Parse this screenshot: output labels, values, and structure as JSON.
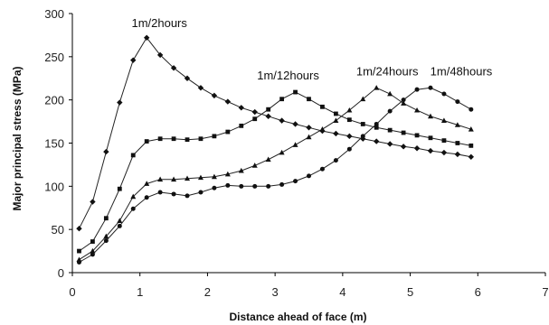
{
  "chart_data": {
    "type": "line",
    "xlabel": "Distance ahead of face (m)",
    "ylabel": "Major principal stress (MPa)",
    "xlim": [
      0,
      7
    ],
    "ylim": [
      0,
      300
    ],
    "xticks": [
      0,
      1,
      2,
      3,
      4,
      5,
      6,
      7
    ],
    "yticks": [
      0,
      50,
      100,
      150,
      200,
      250,
      300
    ],
    "grid": false,
    "legend": "none",
    "series": [
      {
        "name": "1m/2hours",
        "marker": "diamond",
        "x": [
          0.1,
          0.3,
          0.5,
          0.7,
          0.9,
          1.1,
          1.3,
          1.5,
          1.7,
          1.9,
          2.1,
          2.3,
          2.5,
          2.7,
          2.9,
          3.1,
          3.3,
          3.5,
          3.7,
          3.9,
          4.1,
          4.3,
          4.5,
          4.7,
          4.9,
          5.1,
          5.3,
          5.5,
          5.7,
          5.9
        ],
        "values": [
          51,
          82,
          140,
          197,
          246,
          272,
          252,
          237,
          225,
          214,
          205,
          198,
          191,
          186,
          181,
          176,
          172,
          168,
          164,
          161,
          158,
          155,
          152,
          149,
          146,
          144,
          141,
          139,
          137,
          134
        ]
      },
      {
        "name": "1m/12hours",
        "marker": "square",
        "x": [
          0.1,
          0.3,
          0.5,
          0.7,
          0.9,
          1.1,
          1.3,
          1.5,
          1.7,
          1.9,
          2.1,
          2.3,
          2.5,
          2.7,
          2.9,
          3.1,
          3.3,
          3.5,
          3.7,
          3.9,
          4.1,
          4.3,
          4.5,
          4.7,
          4.9,
          5.1,
          5.3,
          5.5,
          5.7,
          5.9
        ],
        "values": [
          25,
          36,
          63,
          97,
          136,
          152,
          155,
          155,
          154,
          155,
          158,
          163,
          170,
          178,
          189,
          201,
          209,
          201,
          192,
          184,
          177,
          172,
          168,
          165,
          162,
          159,
          156,
          153,
          150,
          147
        ]
      },
      {
        "name": "1m/24hours",
        "marker": "triangle",
        "x": [
          0.1,
          0.3,
          0.5,
          0.7,
          0.9,
          1.1,
          1.3,
          1.5,
          1.7,
          1.9,
          2.1,
          2.3,
          2.5,
          2.7,
          2.9,
          3.1,
          3.3,
          3.5,
          3.7,
          3.9,
          4.1,
          4.3,
          4.5,
          4.7,
          4.9,
          5.1,
          5.3,
          5.5,
          5.7,
          5.9
        ],
        "values": [
          15,
          25,
          42,
          60,
          88,
          103,
          108,
          108,
          109,
          110,
          111,
          114,
          118,
          124,
          131,
          139,
          148,
          157,
          166,
          176,
          188,
          201,
          214,
          207,
          196,
          188,
          181,
          176,
          171,
          166
        ]
      },
      {
        "name": "1m/48hours",
        "marker": "circle",
        "x": [
          0.1,
          0.3,
          0.5,
          0.7,
          0.9,
          1.1,
          1.3,
          1.5,
          1.7,
          1.9,
          2.1,
          2.3,
          2.5,
          2.7,
          2.9,
          3.1,
          3.3,
          3.5,
          3.7,
          3.9,
          4.1,
          4.3,
          4.5,
          4.7,
          4.9,
          5.1,
          5.3,
          5.5,
          5.7,
          5.9
        ],
        "values": [
          12,
          21,
          37,
          54,
          74,
          87,
          93,
          91,
          89,
          93,
          98,
          101,
          100,
          100,
          100,
          102,
          106,
          112,
          120,
          130,
          143,
          158,
          172,
          187,
          200,
          212,
          214,
          207,
          198,
          189
        ]
      }
    ]
  }
}
